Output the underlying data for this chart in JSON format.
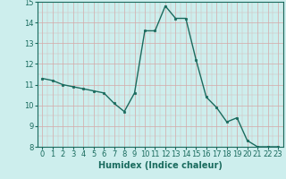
{
  "x": [
    0,
    1,
    2,
    3,
    4,
    5,
    6,
    7,
    8,
    9,
    10,
    11,
    12,
    13,
    14,
    15,
    16,
    17,
    18,
    19,
    20,
    21,
    22,
    23
  ],
  "y": [
    11.3,
    11.2,
    11.0,
    10.9,
    10.8,
    10.7,
    10.6,
    10.1,
    9.7,
    10.6,
    13.6,
    13.6,
    14.8,
    14.2,
    14.2,
    12.2,
    10.4,
    9.9,
    9.2,
    9.4,
    8.3,
    8.0,
    8.0,
    8.0
  ],
  "line_color": "#1a6b5e",
  "marker": "o",
  "marker_size": 1.8,
  "linewidth": 1.0,
  "background_color": "#cdeeed",
  "grid_major_color": "#b8d8d5",
  "grid_minor_color": "#c8e5e3",
  "xlabel": "Humidex (Indice chaleur)",
  "xlabel_fontsize": 7,
  "tick_fontsize": 6,
  "ylim": [
    8,
    15
  ],
  "xlim": [
    -0.5,
    23.5
  ],
  "yticks": [
    8,
    9,
    10,
    11,
    12,
    13,
    14,
    15
  ],
  "xticks": [
    0,
    1,
    2,
    3,
    4,
    5,
    6,
    7,
    8,
    9,
    10,
    11,
    12,
    13,
    14,
    15,
    16,
    17,
    18,
    19,
    20,
    21,
    22,
    23
  ],
  "figsize": [
    3.2,
    2.0
  ],
  "dpi": 100
}
